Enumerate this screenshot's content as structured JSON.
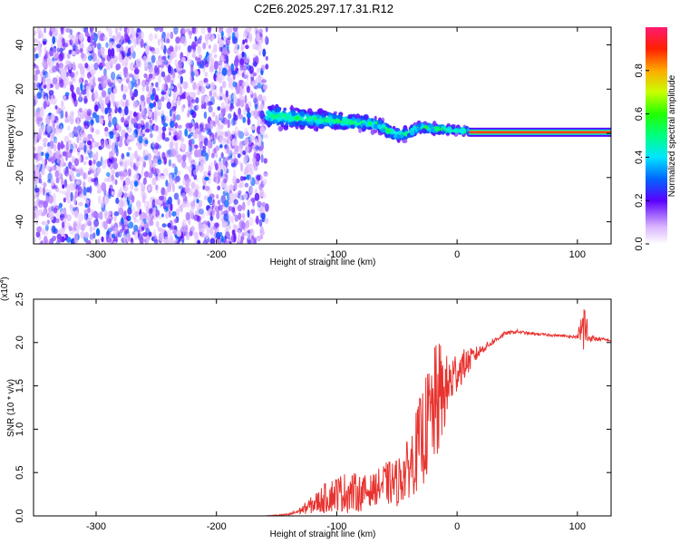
{
  "title": "C2E6.2025.297.17.31.R12",
  "chart_data": [
    {
      "type": "heatmap",
      "panel": "top",
      "xlabel": "Height of straight line (km)",
      "ylabel": "Frequency (Hz)",
      "xlim": [
        -352,
        128
      ],
      "ylim": [
        -50,
        48
      ],
      "xticks": [
        -300,
        -200,
        -100,
        0,
        100
      ],
      "yticks": [
        -40,
        -20,
        0,
        20,
        40
      ],
      "xtick_labels": [
        "-300",
        "-200",
        "-100",
        "0",
        "100"
      ],
      "ytick_labels": [
        "-40",
        "-20",
        "0",
        "20",
        "40"
      ],
      "colorbar": {
        "label": "Normalized spectral amplitude",
        "range": [
          0.0,
          1.0
        ],
        "ticks": [
          0.0,
          0.2,
          0.4,
          0.6,
          0.8
        ],
        "tick_labels": [
          "0.0",
          "0.2",
          "0.4",
          "0.6",
          "0.8"
        ]
      },
      "regions": [
        {
          "name": "noise",
          "x": [
            -352,
            -158
          ],
          "freq": [
            -50,
            48
          ],
          "amplitude": [
            0.05,
            0.25
          ]
        },
        {
          "name": "dispersed_echo",
          "x": [
            -158,
            10
          ],
          "freq_center_start": 8,
          "freq_center_end": 1,
          "spread_start": 7,
          "spread_end": 2,
          "amplitude": [
            0.1,
            0.5
          ]
        },
        {
          "name": "carrier_line",
          "x": [
            10,
            128
          ],
          "freq": 0.5,
          "amplitude": 1.0
        }
      ]
    },
    {
      "type": "line",
      "panel": "bottom",
      "xlabel": "Height of straight line (km)",
      "ylabel": "SNR (10 * v/v)",
      "y_scale_label": "(x10",
      "y_scale_exp": "4",
      "y_scale_close": ")",
      "xlim": [
        -352,
        128
      ],
      "ylim": [
        0,
        2.5
      ],
      "xticks": [
        -300,
        -200,
        -100,
        0,
        100
      ],
      "yticks": [
        0,
        0.5,
        1.0,
        1.5,
        2.0,
        2.5
      ],
      "xtick_labels": [
        "-300",
        "-200",
        "-100",
        "0",
        "100"
      ],
      "ytick_labels": [
        "0.0",
        "0.5",
        "1.0",
        "1.5",
        "2.0",
        "2.5"
      ],
      "series": [
        {
          "name": "SNR",
          "color": "#e8332f",
          "envelope": {
            "x": [
              -352,
              -160,
              -140,
              -130,
              -120,
              -110,
              -100,
              -90,
              -80,
              -70,
              -60,
              -50,
              -40,
              -30,
              -20,
              -15,
              -10,
              -5,
              0,
              10,
              20,
              30,
              40,
              50,
              60,
              80,
              100,
              106,
              110,
              128
            ],
            "base": [
              0.0,
              0.0,
              0.01,
              0.05,
              0.1,
              0.15,
              0.2,
              0.2,
              0.2,
              0.25,
              0.3,
              0.3,
              0.45,
              0.7,
              1.0,
              1.15,
              1.3,
              1.45,
              1.6,
              1.75,
              1.9,
              2.0,
              2.1,
              2.12,
              2.1,
              2.08,
              2.06,
              2.05,
              2.04,
              2.02
            ],
            "noise": [
              0.0,
              0.0,
              0.02,
              0.06,
              0.15,
              0.25,
              0.3,
              0.35,
              0.3,
              0.25,
              0.35,
              0.4,
              0.5,
              0.8,
              1.0,
              1.0,
              0.6,
              0.5,
              0.35,
              0.2,
              0.08,
              0.05,
              0.03,
              0.03,
              0.02,
              0.02,
              0.02,
              0.6,
              0.05,
              0.02
            ]
          }
        }
      ]
    }
  ]
}
